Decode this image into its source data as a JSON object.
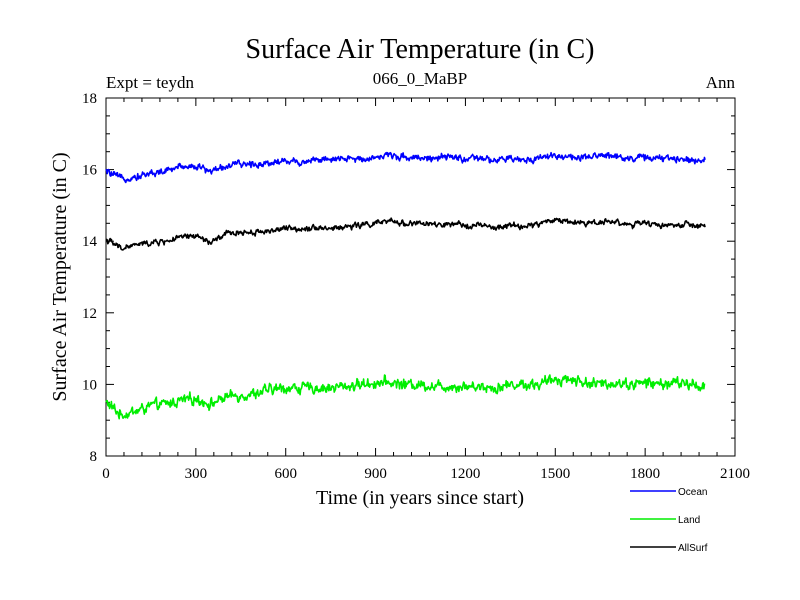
{
  "chart_data": {
    "type": "line",
    "title": "Surface Air Temperature (in C)",
    "subtitle": "066_0_MaBP",
    "left_note": "Expt = teydn",
    "right_note": "Ann",
    "xlabel": "Time (in years since start)",
    "ylabel": "Surface Air Temperature (in C)",
    "xlim": [
      0,
      2100
    ],
    "ylim": [
      8,
      18
    ],
    "xticks": [
      0,
      300,
      600,
      900,
      1200,
      1500,
      1800,
      2100
    ],
    "yticks": [
      8,
      10,
      12,
      14,
      16,
      18
    ],
    "xtick_labels": [
      "0",
      "300",
      "600",
      "900",
      "1200",
      "1500",
      "1800",
      "2100"
    ],
    "ytick_labels": [
      "8",
      "10",
      "12",
      "14",
      "16",
      "18"
    ],
    "grid": false,
    "legend_position": "bottom-right, outside plot",
    "series": [
      {
        "name": "Ocean",
        "color": "#0000ff",
        "x": [
          0,
          50,
          100,
          150,
          200,
          250,
          300,
          350,
          400,
          450,
          500,
          550,
          600,
          650,
          700,
          750,
          800,
          850,
          900,
          950,
          1000,
          1050,
          1100,
          1150,
          1200,
          1250,
          1300,
          1350,
          1400,
          1450,
          1500,
          1550,
          1600,
          1650,
          1700,
          1750,
          1800,
          1850,
          1900,
          1950,
          2000
        ],
        "values": [
          15.95,
          15.75,
          15.8,
          15.9,
          15.95,
          16.1,
          16.1,
          15.95,
          16.1,
          16.15,
          16.15,
          16.2,
          16.25,
          16.2,
          16.3,
          16.25,
          16.3,
          16.3,
          16.35,
          16.4,
          16.35,
          16.35,
          16.3,
          16.35,
          16.3,
          16.3,
          16.25,
          16.3,
          16.25,
          16.35,
          16.4,
          16.35,
          16.3,
          16.4,
          16.4,
          16.3,
          16.35,
          16.3,
          16.3,
          16.3,
          16.25
        ]
      },
      {
        "name": "Land",
        "color": "#00ee00",
        "x": [
          0,
          50,
          100,
          150,
          200,
          250,
          300,
          350,
          400,
          450,
          500,
          550,
          600,
          650,
          700,
          750,
          800,
          850,
          900,
          950,
          1000,
          1050,
          1100,
          1150,
          1200,
          1250,
          1300,
          1350,
          1400,
          1450,
          1500,
          1550,
          1600,
          1650,
          1700,
          1750,
          1800,
          1850,
          1900,
          1950,
          2000
        ],
        "values": [
          9.5,
          9.15,
          9.25,
          9.4,
          9.45,
          9.55,
          9.6,
          9.45,
          9.65,
          9.7,
          9.75,
          9.85,
          9.9,
          9.9,
          9.9,
          9.9,
          9.95,
          10.0,
          10.05,
          10.05,
          10.0,
          10.0,
          9.95,
          9.95,
          9.95,
          9.95,
          9.9,
          10.0,
          10.0,
          10.0,
          10.15,
          10.15,
          10.05,
          10.0,
          10.05,
          10.0,
          10.05,
          10.0,
          10.05,
          10.0,
          9.95
        ]
      },
      {
        "name": "AllSurf",
        "color": "#000000",
        "x": [
          0,
          50,
          100,
          150,
          200,
          250,
          300,
          350,
          400,
          450,
          500,
          550,
          600,
          650,
          700,
          750,
          800,
          850,
          900,
          950,
          1000,
          1050,
          1100,
          1150,
          1200,
          1250,
          1300,
          1350,
          1400,
          1450,
          1500,
          1550,
          1600,
          1650,
          1700,
          1750,
          1800,
          1850,
          1900,
          1950,
          2000
        ],
        "values": [
          14.05,
          13.8,
          13.9,
          13.95,
          14.0,
          14.1,
          14.15,
          13.95,
          14.2,
          14.25,
          14.25,
          14.3,
          14.35,
          14.35,
          14.4,
          14.35,
          14.4,
          14.45,
          14.5,
          14.55,
          14.5,
          14.5,
          14.45,
          14.45,
          14.45,
          14.45,
          14.35,
          14.45,
          14.4,
          14.5,
          14.6,
          14.55,
          14.5,
          14.55,
          14.55,
          14.45,
          14.5,
          14.45,
          14.45,
          14.45,
          14.4
        ]
      }
    ]
  }
}
